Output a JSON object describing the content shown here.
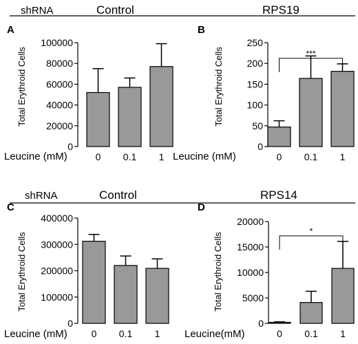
{
  "header_rows": [
    {
      "shrna_label": "shRNA",
      "left_group": "Control",
      "right_group": "RPS19"
    },
    {
      "shrna_label": "shRNA",
      "left_group": "Control",
      "right_group": "RPS14"
    }
  ],
  "chart_data": [
    {
      "type": "bar",
      "panel": "A",
      "ylabel": "Total Erythroid Cells",
      "xlabel": "Leucine (mM)",
      "categories": [
        "0",
        "0.1",
        "1"
      ],
      "values": [
        52000,
        57000,
        77000
      ],
      "error_upper": [
        75000,
        66000,
        99000
      ],
      "ylim": [
        0,
        100000
      ],
      "yticks": [
        0,
        20000,
        40000,
        60000,
        80000,
        100000
      ],
      "ytick_labels": [
        "0",
        "20000",
        "40000",
        "60000",
        "80000",
        "100000"
      ],
      "bar_color": "#999999",
      "significance": null
    },
    {
      "type": "bar",
      "panel": "B",
      "ylabel": "Total Erythroid Cells",
      "xlabel": "Leucine (mM)",
      "categories": [
        "0",
        "0.1",
        "1"
      ],
      "values": [
        47,
        164,
        181
      ],
      "error_upper": [
        62,
        218,
        199
      ],
      "ylim": [
        0,
        250
      ],
      "yticks": [
        0,
        50,
        100,
        150,
        200,
        250
      ],
      "ytick_labels": [
        "0",
        "50",
        "100",
        "150",
        "200",
        "250"
      ],
      "bar_color": "#999999",
      "significance": {
        "from": 0,
        "to": 2,
        "label": "***"
      }
    },
    {
      "type": "bar",
      "panel": "C",
      "ylabel": "Total Erythroid Cells",
      "xlabel": "Leucine (mM)",
      "categories": [
        "0",
        "0.1",
        "1"
      ],
      "values": [
        312000,
        220000,
        209000
      ],
      "error_upper": [
        338000,
        256000,
        245000
      ],
      "ylim": [
        0,
        400000
      ],
      "yticks": [
        0,
        100000,
        200000,
        300000,
        400000
      ],
      "ytick_labels": [
        "0",
        "100000",
        "200000",
        "300000",
        "400000"
      ],
      "bar_color": "#999999",
      "significance": null
    },
    {
      "type": "bar",
      "panel": "D",
      "ylabel": "Total  Erythroid Cells",
      "xlabel": "Leucine(mM)",
      "categories": [
        "0",
        "0.1",
        "1"
      ],
      "values": [
        200,
        4100,
        10800
      ],
      "error_upper": [
        300,
        6300,
        16100
      ],
      "ylim": [
        0,
        20000
      ],
      "yticks": [
        0,
        5000,
        10000,
        15000,
        20000
      ],
      "ytick_labels": [
        "0",
        "5000",
        "10000",
        "15000",
        "20000"
      ],
      "bar_color": "#999999",
      "significance": {
        "from": 0,
        "to": 2,
        "label": "*"
      }
    }
  ]
}
